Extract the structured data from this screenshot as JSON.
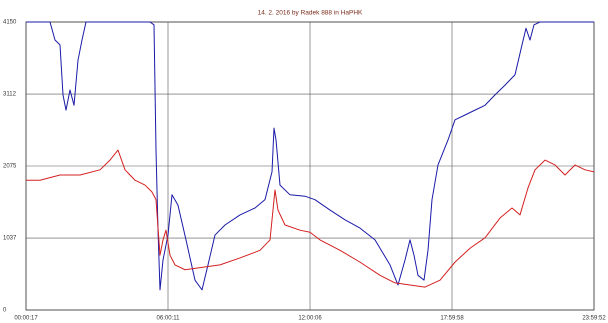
{
  "chart_data": {
    "type": "line",
    "title": "14. 2. 2016  by  Radek 888  in  HaPHK",
    "xlim": [
      17,
      86392
    ],
    "xticks": [
      {
        "value": 17,
        "label": "00:00:17"
      },
      {
        "value": 21611,
        "label": "06:00:11"
      },
      {
        "value": 43206,
        "label": "12:00:06"
      },
      {
        "value": 64798,
        "label": "17:59:58"
      },
      {
        "value": 86392,
        "label": "23:59:52"
      }
    ],
    "ylim": [
      0,
      4150
    ],
    "yticks": [
      0,
      1037,
      2075,
      3112,
      4150
    ],
    "grid": true,
    "series": [
      {
        "color": "#1a1aa8",
        "x": [
          17,
          3667,
          4427,
          5187,
          5644,
          6100,
          6708,
          7316,
          7925,
          8533,
          9141,
          18874,
          19482,
          19786,
          20090,
          20394,
          20850,
          21611,
          22219,
          23130,
          24348,
          25717,
          26781,
          27694,
          28758,
          30279,
          32560,
          34841,
          36362,
          37426,
          37730,
          38035,
          38643,
          40162,
          42445,
          43965,
          46246,
          48527,
          50808,
          53089,
          55370,
          56587,
          57651,
          58412,
          59019,
          59627,
          60540,
          61148,
          61757,
          62669,
          64190,
          65255,
          66775,
          68296,
          69817,
          71338,
          72858,
          74379,
          75444,
          76052,
          76660,
          77269,
          78181,
          86392
        ],
        "values": [
          4150,
          4150,
          3890,
          3820,
          3100,
          2880,
          3170,
          2950,
          3600,
          3890,
          4150,
          4150,
          4110,
          2305,
          1150,
          290,
          720,
          1080,
          1660,
          1510,
          1010,
          430,
          290,
          650,
          1080,
          1225,
          1370,
          1470,
          1590,
          1990,
          2620,
          2450,
          1800,
          1660,
          1640,
          1590,
          1440,
          1300,
          1180,
          1010,
          650,
          360,
          720,
          1010,
          790,
          500,
          430,
          860,
          1590,
          2090,
          2450,
          2740,
          2810,
          2880,
          2950,
          3100,
          3240,
          3390,
          3820,
          4060,
          3890,
          4110,
          4150,
          4150
        ]
      },
      {
        "color": "#d42020",
        "x": [
          17,
          2146,
          5187,
          8229,
          11270,
          12791,
          14007,
          15072,
          16593,
          18114,
          19178,
          19786,
          20394,
          20850,
          21307,
          21915,
          22675,
          24196,
          26477,
          29519,
          32560,
          35601,
          37122,
          37882,
          38335,
          39403,
          41684,
          43205,
          44726,
          47767,
          50808,
          53850,
          56131,
          58412,
          60693,
          62973,
          65255,
          67536,
          69817,
          72098,
          73923,
          75139,
          76357,
          77421,
          78942,
          80463,
          81983,
          83504,
          85025,
          86392
        ],
        "values": [
          1870,
          1870,
          1945,
          1945,
          2020,
          2160,
          2305,
          2020,
          1870,
          1800,
          1700,
          1590,
          790,
          1010,
          1150,
          790,
          650,
          580,
          610,
          650,
          750,
          860,
          1010,
          1730,
          1440,
          1225,
          1150,
          1120,
          1010,
          860,
          690,
          500,
          390,
          360,
          330,
          430,
          690,
          890,
          1040,
          1325,
          1470,
          1370,
          1760,
          2020,
          2160,
          2090,
          1945,
          2090,
          2020,
          1990
        ]
      }
    ]
  }
}
